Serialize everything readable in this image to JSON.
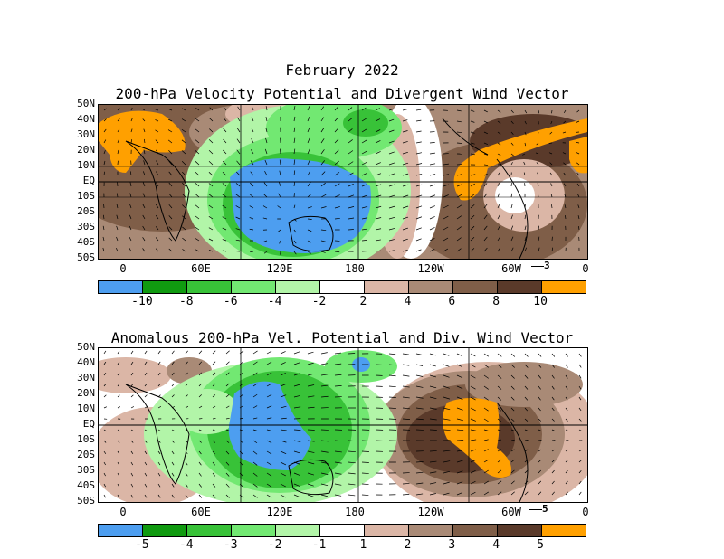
{
  "top_panel": {
    "title_line1": "February 2022",
    "title_line2": "200-hPa Velocity Potential and Divergent Wind Vector",
    "lat_labels": [
      "50N",
      "40N",
      "30N",
      "20N",
      "10N",
      "EQ",
      "10S",
      "20S",
      "30S",
      "40S",
      "50S"
    ],
    "lon_labels": [
      "0",
      "60E",
      "120E",
      "180",
      "120W",
      "60W",
      "0"
    ],
    "vector_ref": "3",
    "colorbar_labels": [
      "-10",
      "-8",
      "-6",
      "-4",
      "-2",
      "2",
      "4",
      "6",
      "8",
      "10"
    ],
    "colorbar_colors": [
      "#4d9ef0",
      "#109a10",
      "#38c238",
      "#72e872",
      "#b2f5a8",
      "#ffffff",
      "#dbb6a6",
      "#a98a76",
      "#7f5e48",
      "#5a3a2a",
      "#ffa000"
    ]
  },
  "bottom_panel": {
    "title": "Anomalous 200-hPa Vel. Potential and Div. Wind Vector",
    "lat_labels": [
      "50N",
      "40N",
      "30N",
      "20N",
      "10N",
      "EQ",
      "10S",
      "20S",
      "30S",
      "40S",
      "50S"
    ],
    "lon_labels": [
      "0",
      "60E",
      "120E",
      "180",
      "120W",
      "60W",
      "0"
    ],
    "vector_ref": "5",
    "colorbar_labels": [
      "-5",
      "-4",
      "-3",
      "-2",
      "-1",
      "1",
      "2",
      "3",
      "4",
      "5"
    ],
    "colorbar_colors": [
      "#4d9ef0",
      "#109a10",
      "#38c238",
      "#72e872",
      "#b2f5a8",
      "#ffffff",
      "#dbb6a6",
      "#a98a76",
      "#7f5e48",
      "#5a3a2a",
      "#ffa000"
    ]
  }
}
